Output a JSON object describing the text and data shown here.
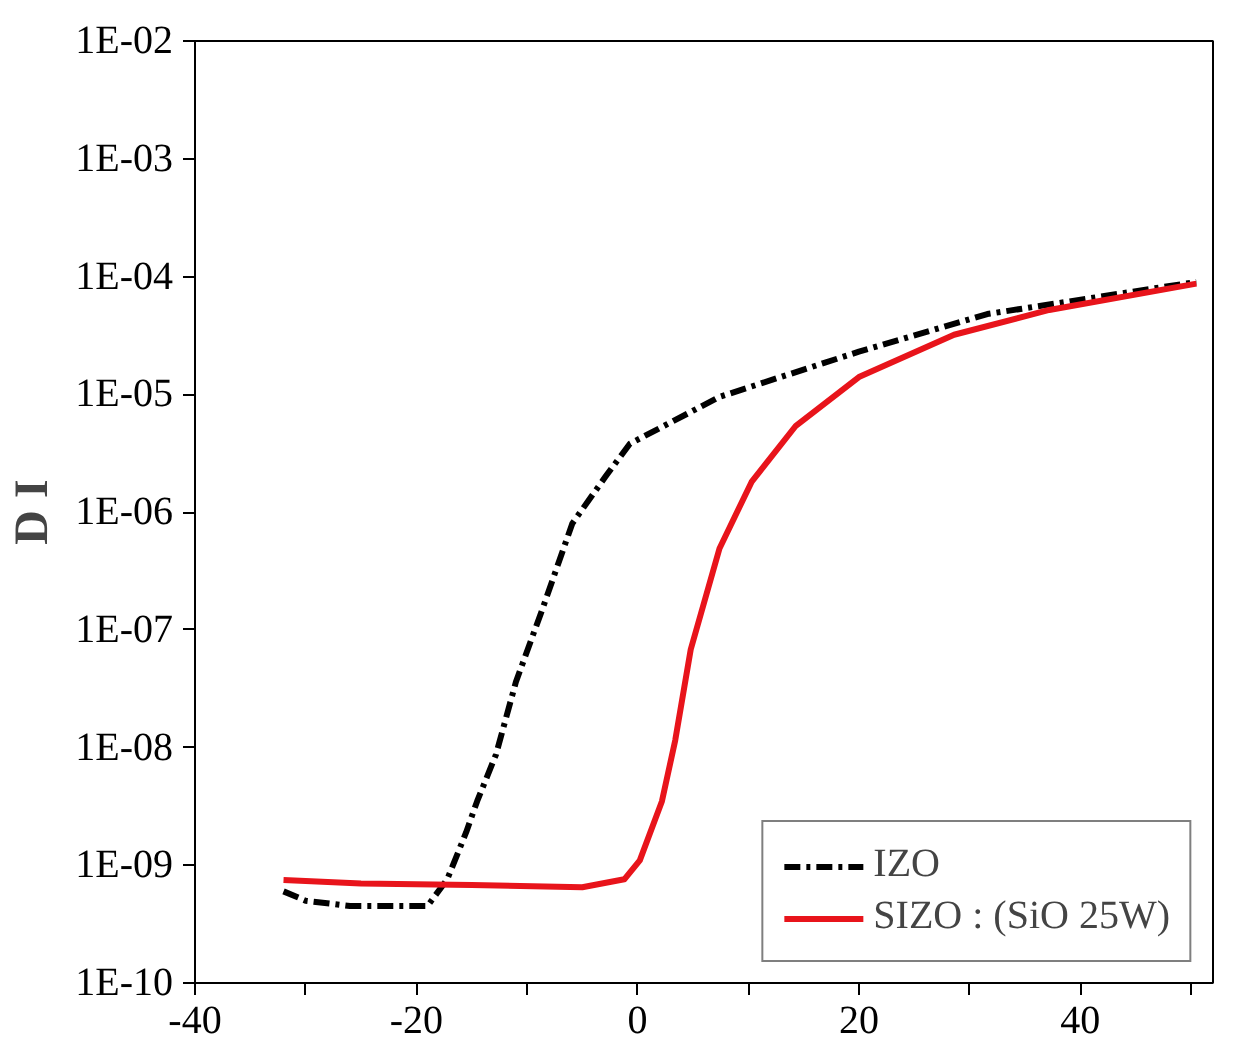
{
  "chart_data": {
    "type": "line",
    "ylabel": "D I",
    "log": "y",
    "grid": false,
    "legend": "bottom right",
    "marker": "none",
    "xlim": [
      -40,
      52
    ],
    "xticks": [
      -40,
      {
        "value": -30,
        "label": null
      },
      -20,
      {
        "value": -10,
        "label": null
      },
      0,
      {
        "value": 10,
        "label": null
      },
      20,
      {
        "value": 30,
        "label": null
      },
      40,
      {
        "value": 50,
        "label": null
      }
    ],
    "ylim": [
      1e-10,
      0.01
    ],
    "yticks": [
      {
        "value": 1e-10,
        "label": "1E-10"
      },
      {
        "value": 1e-09,
        "label": "1E-09"
      },
      {
        "value": 1e-08,
        "label": "1E-08"
      },
      {
        "value": 1e-07,
        "label": "1E-07"
      },
      {
        "value": 1e-06,
        "label": "1E-06"
      },
      {
        "value": 1e-05,
        "label": "1E-05"
      },
      {
        "value": 0.0001,
        "label": "1E-04"
      },
      {
        "value": 0.001,
        "label": "1E-03"
      },
      {
        "value": 0.01,
        "label": "1E-02"
      }
    ],
    "series": [
      {
        "name": "IZO",
        "color": "#000000",
        "line_style": "dashed",
        "x": [
          -32,
          -30,
          -26,
          -22,
          -19,
          -17.2,
          -15.5,
          -14.5,
          -12.8,
          -11.0,
          -8.6,
          -5.9,
          -2.9,
          -0.7,
          7.4,
          20,
          31.6,
          50.5
        ],
        "values": [
          6e-10,
          5e-10,
          4.5e-10,
          4.5e-10,
          4.5e-10,
          7.6e-10,
          1.9e-09,
          3.5e-09,
          8.7e-09,
          3.6e-08,
          1.5e-07,
          8e-07,
          2e-06,
          3.8e-06,
          9.5e-06,
          2.3e-05,
          4.8e-05,
          9e-05
        ]
      },
      {
        "name": "SIZO : (SiO 25W)",
        "color": "#e8141b",
        "line_style": "solid",
        "x": [
          -32,
          -25,
          -15,
          -5,
          -1.2,
          0.2,
          2.2,
          3.4,
          4.8,
          7.4,
          10.3,
          14.3,
          20,
          28.6,
          37.2,
          50.5
        ],
        "values": [
          7.5e-10,
          7e-10,
          6.8e-10,
          6.5e-10,
          7.6e-10,
          1.1e-09,
          3.5e-09,
          1.15e-08,
          6.8e-08,
          4.9e-07,
          1.8e-06,
          5.4e-06,
          1.4e-05,
          3.2e-05,
          5.2e-05,
          8.7e-05
        ]
      }
    ]
  }
}
